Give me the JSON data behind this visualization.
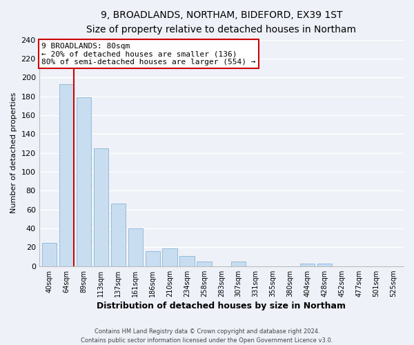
{
  "title": "9, BROADLANDS, NORTHAM, BIDEFORD, EX39 1ST",
  "subtitle": "Size of property relative to detached houses in Northam",
  "xlabel": "Distribution of detached houses by size in Northam",
  "ylabel": "Number of detached properties",
  "bar_labels": [
    "40sqm",
    "64sqm",
    "89sqm",
    "113sqm",
    "137sqm",
    "161sqm",
    "186sqm",
    "210sqm",
    "234sqm",
    "258sqm",
    "283sqm",
    "307sqm",
    "331sqm",
    "355sqm",
    "380sqm",
    "404sqm",
    "428sqm",
    "452sqm",
    "477sqm",
    "501sqm",
    "525sqm"
  ],
  "bar_values": [
    25,
    193,
    179,
    125,
    66,
    40,
    16,
    19,
    11,
    5,
    0,
    5,
    0,
    0,
    0,
    3,
    3,
    0,
    0,
    0,
    0
  ],
  "bar_color": "#c8ddf0",
  "bar_edge_color": "#8ab4d4",
  "property_line_color": "#cc0000",
  "annotation_title": "9 BROADLANDS: 80sqm",
  "annotation_line1": "← 20% of detached houses are smaller (136)",
  "annotation_line2": "80% of semi-detached houses are larger (554) →",
  "annotation_box_color": "#ffffff",
  "annotation_box_edge": "#cc0000",
  "ylim": [
    0,
    240
  ],
  "yticks": [
    0,
    20,
    40,
    60,
    80,
    100,
    120,
    140,
    160,
    180,
    200,
    220,
    240
  ],
  "footer_line1": "Contains HM Land Registry data © Crown copyright and database right 2024.",
  "footer_line2": "Contains public sector information licensed under the Open Government Licence v3.0.",
  "background_color": "#eef2f8",
  "grid_color": "#ffffff"
}
